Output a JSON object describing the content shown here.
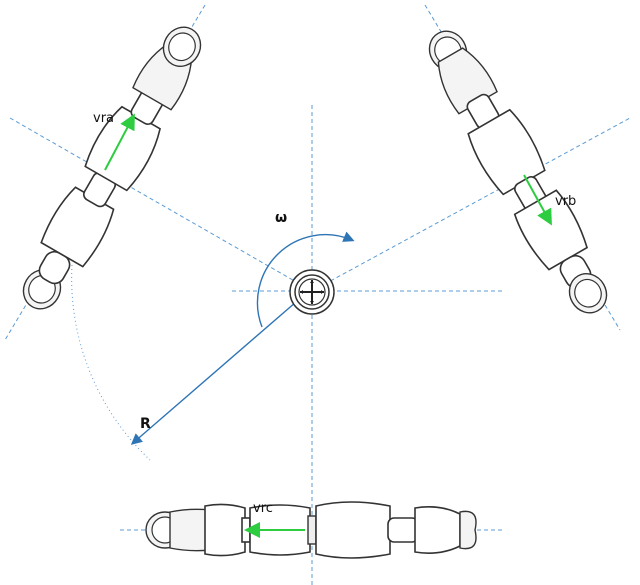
{
  "labels": {
    "omega": "ω",
    "radius": "R",
    "vra": "vra",
    "vrb": "vrb",
    "vrc": "vrc"
  },
  "colors": {
    "guide": "#5b9bd5",
    "velocity": "#2ecc40",
    "radius_arrow": "#2e75b6",
    "outline": "#333333"
  },
  "icons": {
    "center_hub": "crosshair-hub-icon"
  }
}
